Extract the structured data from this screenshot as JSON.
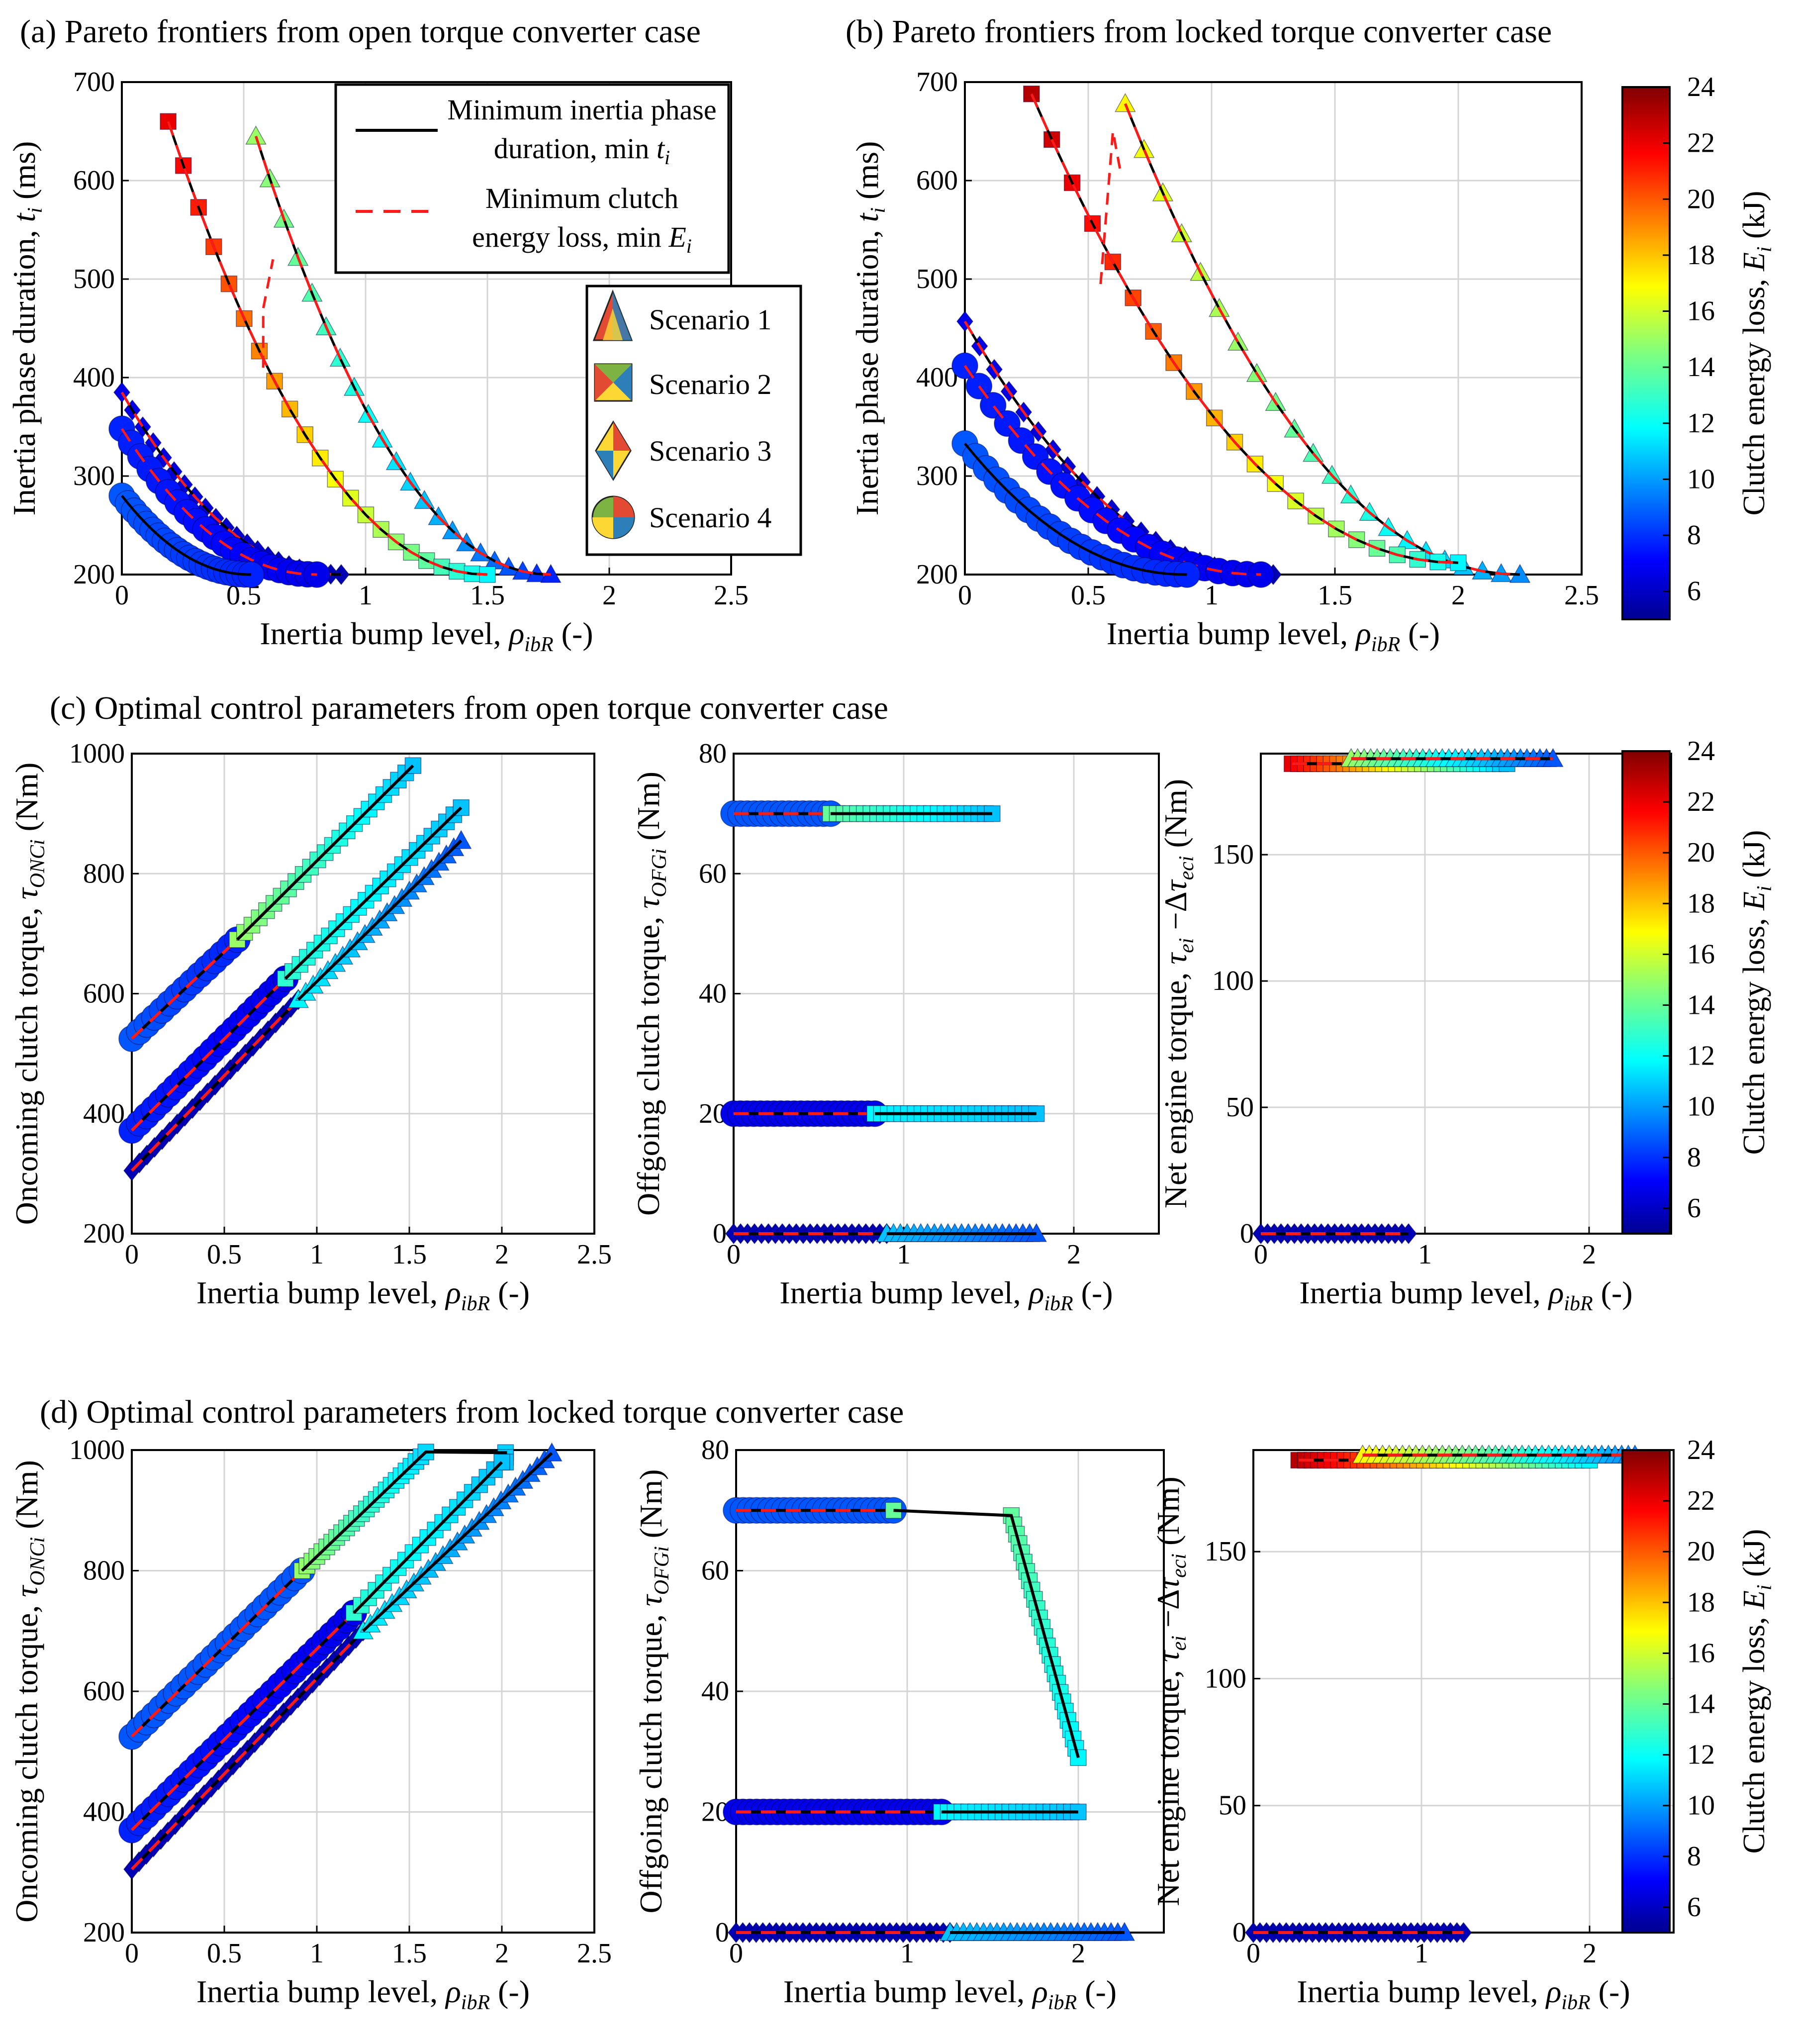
{
  "figure": {
    "section_titles": {
      "a": "(a) Pareto frontiers from open torque converter case",
      "b": "(b) Pareto frontiers from locked torque converter case",
      "c": "(c) Optimal control parameters from open torque converter case",
      "d": "(d) Optimal control parameters from locked torque converter case"
    },
    "legend": {
      "min_ti_line1": "Minimum inertia phase",
      "min_ti_line2": "duration, min ",
      "min_ti_var": "t",
      "min_ti_sub": "i",
      "min_ei_line1": "Minimum clutch",
      "min_ei_line2": "energy loss, min ",
      "min_ei_var": "E",
      "min_ei_sub": "i",
      "scenario1": "Scenario 1",
      "scenario2": "Scenario 2",
      "scenario3": "Scenario 3",
      "scenario4": "Scenario 4"
    },
    "axis_titles": {
      "x_pre": "Inertia bump level, ",
      "x_var": "ρ",
      "x_sub": "ibR",
      "x_post": " (-)",
      "ti_pre": "Inertia phase duration, ",
      "ti_var": "t",
      "ti_sub": "i",
      "ti_post": " (ms)",
      "onc_pre": "Oncoming clutch torque, ",
      "onc_var": "τ",
      "onc_sub": "ONCi",
      "onc_post": " (Nm)",
      "ofg_pre": "Offgoing clutch torque, ",
      "ofg_var": "τ",
      "ofg_sub": "OFGi",
      "ofg_post": " (Nm)",
      "eng_pre": "Net engine torque, ",
      "eng_var1": "τ",
      "eng_sub1": "ei",
      "eng_mid": " −Δ",
      "eng_var2": "τ",
      "eng_sub2": "eci",
      "eng_post": " (Nm)",
      "cbar_pre": "Clutch energy loss, ",
      "cbar_var": "E",
      "cbar_sub": "i",
      "cbar_post": " (kJ)"
    },
    "colorbar": {
      "min": 5,
      "max": 24,
      "ticks": [
        "6",
        "8",
        "10",
        "12",
        "14",
        "16",
        "18",
        "20",
        "22",
        "24"
      ]
    },
    "colors": {
      "min_ti_line": "#000000",
      "min_ei_line": "#ff1a1a",
      "grid": "#d9d9d9",
      "colormap": "jet"
    }
  },
  "chart_data": [
    {
      "id": "a",
      "type": "scatter",
      "title": "(a) Pareto frontiers from open torque converter case",
      "xlabel": "Inertia bump level, ρibR (-)",
      "ylabel": "Inertia phase duration, ti (ms)",
      "xlim": [
        0,
        2.5
      ],
      "ylim": [
        200,
        700
      ],
      "xticks": [
        0,
        0.5,
        1,
        1.5,
        2,
        2.5
      ],
      "xtick_labels": [
        "0",
        "0.5",
        "1",
        "1.5",
        "2",
        "2.5"
      ],
      "yticks": [
        200,
        300,
        400,
        500,
        600,
        700
      ],
      "ytick_labels": [
        "200",
        "300",
        "400",
        "500",
        "600",
        "700"
      ],
      "grid": true,
      "series": [
        {
          "name": "Scenario 1",
          "marker": "triangle",
          "x": [
            0.55,
            1.76
          ],
          "y": [
            645,
            200
          ],
          "energy": [
            15,
            8
          ],
          "min_ti": true,
          "min_ei": true
        },
        {
          "name": "Scenario 2",
          "marker": "square",
          "x": [
            0.19,
            1.5
          ],
          "y": [
            660,
            200
          ],
          "energy": [
            22,
            12
          ],
          "min_ti": true,
          "min_ei": true
        },
        {
          "name": "Scenario 3",
          "marker": "diamond",
          "x": [
            0,
            0.9
          ],
          "y": [
            385,
            200
          ],
          "energy": [
            7,
            6
          ],
          "min_ti": true,
          "min_ei": true
        },
        {
          "name": "Scenario 4",
          "marker": "circle",
          "x": [
            0,
            0.8
          ],
          "y": [
            348,
            200
          ],
          "energy": [
            8,
            7
          ],
          "min_ti": false,
          "min_ei": true
        },
        {
          "name": "Scenario 4",
          "marker": "circle",
          "x": [
            0,
            0.53
          ],
          "y": [
            280,
            200
          ],
          "energy": [
            9,
            8
          ],
          "min_ti": true,
          "min_ei": false
        }
      ],
      "min_ei_jump": {
        "x": [
          0.58,
          0.58,
          0.62
        ],
        "y": [
          410,
          470,
          520
        ]
      }
    },
    {
      "id": "b",
      "type": "scatter",
      "title": "(b) Pareto frontiers from locked torque converter case",
      "xlabel": "Inertia bump level, ρibR (-)",
      "ylabel": "Inertia phase duration, ti (ms)",
      "xlim": [
        0,
        2.5
      ],
      "ylim": [
        200,
        700
      ],
      "xticks": [
        0,
        0.5,
        1,
        1.5,
        2,
        2.5
      ],
      "xtick_labels": [
        "0",
        "0.5",
        "1",
        "1.5",
        "2",
        "2.5"
      ],
      "yticks": [
        200,
        300,
        400,
        500,
        600,
        700
      ],
      "ytick_labels": [
        "200",
        "300",
        "400",
        "500",
        "600",
        "700"
      ],
      "grid": true,
      "series": [
        {
          "name": "Scenario 1",
          "marker": "triangle",
          "x": [
            0.65,
            2.25
          ],
          "y": [
            678,
            200
          ],
          "energy": [
            17,
            10
          ],
          "min_ti": true,
          "min_ei": true
        },
        {
          "name": "Scenario 2",
          "marker": "square",
          "x": [
            0.27,
            2.0
          ],
          "y": [
            688,
            212
          ],
          "energy": [
            23,
            12
          ],
          "min_ti": true,
          "min_ei": true
        },
        {
          "name": "Scenario 3",
          "marker": "diamond",
          "x": [
            0,
            1.25
          ],
          "y": [
            457,
            200
          ],
          "energy": [
            7,
            6
          ],
          "min_ti": true,
          "min_ei": true
        },
        {
          "name": "Scenario 4",
          "marker": "circle",
          "x": [
            0,
            1.2
          ],
          "y": [
            412,
            200
          ],
          "energy": [
            8,
            7
          ],
          "min_ti": false,
          "min_ei": true
        },
        {
          "name": "Scenario 4",
          "marker": "circle",
          "x": [
            0,
            0.9
          ],
          "y": [
            333,
            200
          ],
          "energy": [
            9,
            8
          ],
          "min_ti": true,
          "min_ei": false
        }
      ],
      "min_ei_jump": {
        "x": [
          0.55,
          0.6,
          0.63
        ],
        "y": [
          495,
          650,
          610
        ]
      }
    },
    {
      "id": "c1",
      "type": "scatter",
      "xlabel": "Inertia bump level, ρibR (-)",
      "ylabel": "Oncoming clutch torque, τONCi (Nm)",
      "xlim": [
        0,
        2.5
      ],
      "ylim": [
        200,
        1000
      ],
      "xticks": [
        0,
        0.5,
        1,
        1.5,
        2,
        2.5
      ],
      "xtick_labels": [
        "0",
        "0.5",
        "1",
        "1.5",
        "2",
        "2.5"
      ],
      "yticks": [
        200,
        400,
        600,
        800,
        1000
      ],
      "ytick_labels": [
        "200",
        "400",
        "600",
        "800",
        "1000"
      ],
      "grid": true,
      "series": [
        {
          "name": "Scenario 4",
          "marker": "circle",
          "x": [
            0,
            0.57
          ],
          "y": [
            525,
            690
          ],
          "energy": [
            9,
            8
          ]
        },
        {
          "name": "Scenario 2",
          "marker": "square",
          "x": [
            0.57,
            1.52
          ],
          "y": [
            690,
            980
          ],
          "energy": [
            15,
            11
          ]
        },
        {
          "name": "Scenario 4",
          "marker": "circle",
          "x": [
            0,
            0.83
          ],
          "y": [
            372,
            625
          ],
          "energy": [
            8,
            7
          ]
        },
        {
          "name": "Scenario 2",
          "marker": "square",
          "x": [
            0.83,
            1.78
          ],
          "y": [
            625,
            910
          ],
          "energy": [
            13,
            11
          ]
        },
        {
          "name": "Scenario 3",
          "marker": "diamond",
          "x": [
            0,
            0.9
          ],
          "y": [
            305,
            590
          ],
          "energy": [
            6,
            6
          ]
        },
        {
          "name": "Scenario 1",
          "marker": "triangle",
          "x": [
            0.9,
            1.78
          ],
          "y": [
            590,
            855
          ],
          "energy": [
            12,
            9
          ]
        }
      ]
    },
    {
      "id": "c2",
      "type": "scatter",
      "xlabel": "Inertia bump level, ρibR (-)",
      "ylabel": "Offgoing clutch torque, τOFGi (Nm)",
      "xlim": [
        0,
        2.5
      ],
      "ylim": [
        0,
        80
      ],
      "xticks": [
        0,
        1,
        2
      ],
      "xtick_labels": [
        "0",
        "1",
        "2"
      ],
      "yticks": [
        0,
        20,
        40,
        60,
        80
      ],
      "ytick_labels": [
        "0",
        "20",
        "40",
        "60",
        "80"
      ],
      "grid": true,
      "series": [
        {
          "name": "Scenario 4",
          "marker": "circle",
          "x": [
            0,
            0.57
          ],
          "y": [
            70,
            70
          ],
          "energy": [
            9,
            9
          ]
        },
        {
          "name": "Scenario 2",
          "marker": "square",
          "x": [
            0.57,
            1.52
          ],
          "y": [
            70,
            70
          ],
          "energy": [
            14,
            11
          ]
        },
        {
          "name": "Scenario 4",
          "marker": "circle",
          "x": [
            0,
            0.83
          ],
          "y": [
            20,
            20
          ],
          "energy": [
            7,
            7
          ]
        },
        {
          "name": "Scenario 2",
          "marker": "square",
          "x": [
            0.83,
            1.78
          ],
          "y": [
            20,
            20
          ],
          "energy": [
            12,
            11
          ]
        },
        {
          "name": "Scenario 3",
          "marker": "diamond",
          "x": [
            0,
            0.9
          ],
          "y": [
            0,
            0
          ],
          "energy": [
            6,
            6
          ]
        },
        {
          "name": "Scenario 1",
          "marker": "triangle",
          "x": [
            0.9,
            1.78
          ],
          "y": [
            0,
            0
          ],
          "energy": [
            11,
            9
          ]
        }
      ]
    },
    {
      "id": "c3",
      "type": "scatter",
      "xlabel": "Inertia bump level, ρibR (-)",
      "ylabel": "Net engine torque, τei −Δτeci (Nm)",
      "xlim": [
        0,
        2.5
      ],
      "ylim": [
        0,
        190
      ],
      "xticks": [
        0,
        1,
        2
      ],
      "xtick_labels": [
        "0",
        "1",
        "2"
      ],
      "yticks": [
        0,
        50,
        100,
        150
      ],
      "ytick_labels": [
        "0",
        "50",
        "100",
        "150"
      ],
      "grid": true,
      "series": [
        {
          "name": "Scenario 2",
          "marker": "square",
          "x": [
            0.19,
            1.5
          ],
          "y": [
            186,
            186
          ],
          "energy": [
            22,
            11
          ]
        },
        {
          "name": "Scenario 1",
          "marker": "triangle",
          "x": [
            0.55,
            1.78
          ],
          "y": [
            188,
            188
          ],
          "energy": [
            15,
            9
          ]
        },
        {
          "name": "Scenario 3",
          "marker": "diamond",
          "x": [
            0,
            0.9
          ],
          "y": [
            0,
            0
          ],
          "energy": [
            6,
            6
          ]
        }
      ]
    },
    {
      "id": "d1",
      "type": "scatter",
      "xlabel": "Inertia bump level, ρibR (-)",
      "ylabel": "Oncoming clutch torque, τONCi (Nm)",
      "xlim": [
        0,
        2.5
      ],
      "ylim": [
        200,
        1000
      ],
      "xticks": [
        0,
        0.5,
        1,
        1.5,
        2,
        2.5
      ],
      "xtick_labels": [
        "0",
        "0.5",
        "1",
        "1.5",
        "2",
        "2.5"
      ],
      "yticks": [
        200,
        400,
        600,
        800,
        1000
      ],
      "ytick_labels": [
        "200",
        "400",
        "600",
        "800",
        "1000"
      ],
      "grid": true,
      "series": [
        {
          "name": "Scenario 4",
          "marker": "circle",
          "x": [
            0,
            0.92
          ],
          "y": [
            525,
            800
          ],
          "energy": [
            9,
            9
          ]
        },
        {
          "name": "Scenario 2",
          "marker": "square",
          "x": [
            0.92,
            1.6,
            2.02,
            2.02
          ],
          "y": [
            800,
            1000,
            1000,
            980
          ],
          "energy": [
            15,
            11
          ]
        },
        {
          "name": "Scenario 4",
          "marker": "circle",
          "x": [
            0,
            1.2
          ],
          "y": [
            370,
            730
          ],
          "energy": [
            8,
            7
          ]
        },
        {
          "name": "Scenario 2",
          "marker": "square",
          "x": [
            1.2,
            2.0
          ],
          "y": [
            730,
            980
          ],
          "energy": [
            13,
            11
          ]
        },
        {
          "name": "Scenario 3",
          "marker": "diamond",
          "x": [
            0,
            1.25
          ],
          "y": [
            305,
            700
          ],
          "energy": [
            6,
            6
          ]
        },
        {
          "name": "Scenario 1",
          "marker": "triangle",
          "x": [
            1.25,
            2.27
          ],
          "y": [
            700,
            995
          ],
          "energy": [
            12,
            9
          ]
        }
      ]
    },
    {
      "id": "d2",
      "type": "scatter",
      "xlabel": "Inertia bump level, ρibR (-)",
      "ylabel": "Offgoing clutch torque, τOFGi (Nm)",
      "xlim": [
        0,
        2.5
      ],
      "ylim": [
        0,
        80
      ],
      "xticks": [
        0,
        1,
        2
      ],
      "xtick_labels": [
        "0",
        "1",
        "2"
      ],
      "yticks": [
        0,
        20,
        40,
        60,
        80
      ],
      "ytick_labels": [
        "0",
        "20",
        "40",
        "60",
        "80"
      ],
      "grid": true,
      "series": [
        {
          "name": "Scenario 4",
          "marker": "circle",
          "x": [
            0,
            0.92
          ],
          "y": [
            70,
            70
          ],
          "energy": [
            9,
            9
          ]
        },
        {
          "name": "Scenario 2",
          "marker": "square",
          "x": [
            0.92,
            1.6,
            2.0
          ],
          "y": [
            70,
            70,
            29
          ],
          "energy": [
            14,
            12
          ]
        },
        {
          "name": "Scenario 4",
          "marker": "circle",
          "x": [
            0,
            1.2
          ],
          "y": [
            20,
            20
          ],
          "energy": [
            7,
            7
          ]
        },
        {
          "name": "Scenario 2",
          "marker": "square",
          "x": [
            1.2,
            2.0
          ],
          "y": [
            20,
            20
          ],
          "energy": [
            12,
            11
          ]
        },
        {
          "name": "Scenario 3",
          "marker": "diamond",
          "x": [
            0,
            1.25
          ],
          "y": [
            0,
            0
          ],
          "energy": [
            6,
            6
          ]
        },
        {
          "name": "Scenario 1",
          "marker": "triangle",
          "x": [
            1.25,
            2.27
          ],
          "y": [
            0,
            0
          ],
          "energy": [
            11,
            9
          ]
        }
      ]
    },
    {
      "id": "d3",
      "type": "scatter",
      "xlabel": "Inertia bump level, ρibR (-)",
      "ylabel": "Net engine torque, τei −Δτeci (Nm)",
      "xlim": [
        0,
        2.5
      ],
      "ylim": [
        0,
        190
      ],
      "xticks": [
        0,
        1,
        2
      ],
      "xtick_labels": [
        "0",
        "1",
        "2"
      ],
      "yticks": [
        0,
        50,
        100,
        150
      ],
      "ytick_labels": [
        "0",
        "50",
        "100",
        "150"
      ],
      "grid": true,
      "series": [
        {
          "name": "Scenario 2",
          "marker": "square",
          "x": [
            0.27,
            2.0
          ],
          "y": [
            186,
            186
          ],
          "energy": [
            23,
            12
          ]
        },
        {
          "name": "Scenario 1",
          "marker": "triangle",
          "x": [
            0.65,
            2.27
          ],
          "y": [
            188,
            188
          ],
          "energy": [
            17,
            10
          ]
        },
        {
          "name": "Scenario 3",
          "marker": "diamond",
          "x": [
            0,
            1.25
          ],
          "y": [
            0,
            0
          ],
          "energy": [
            6,
            6
          ]
        }
      ]
    }
  ]
}
